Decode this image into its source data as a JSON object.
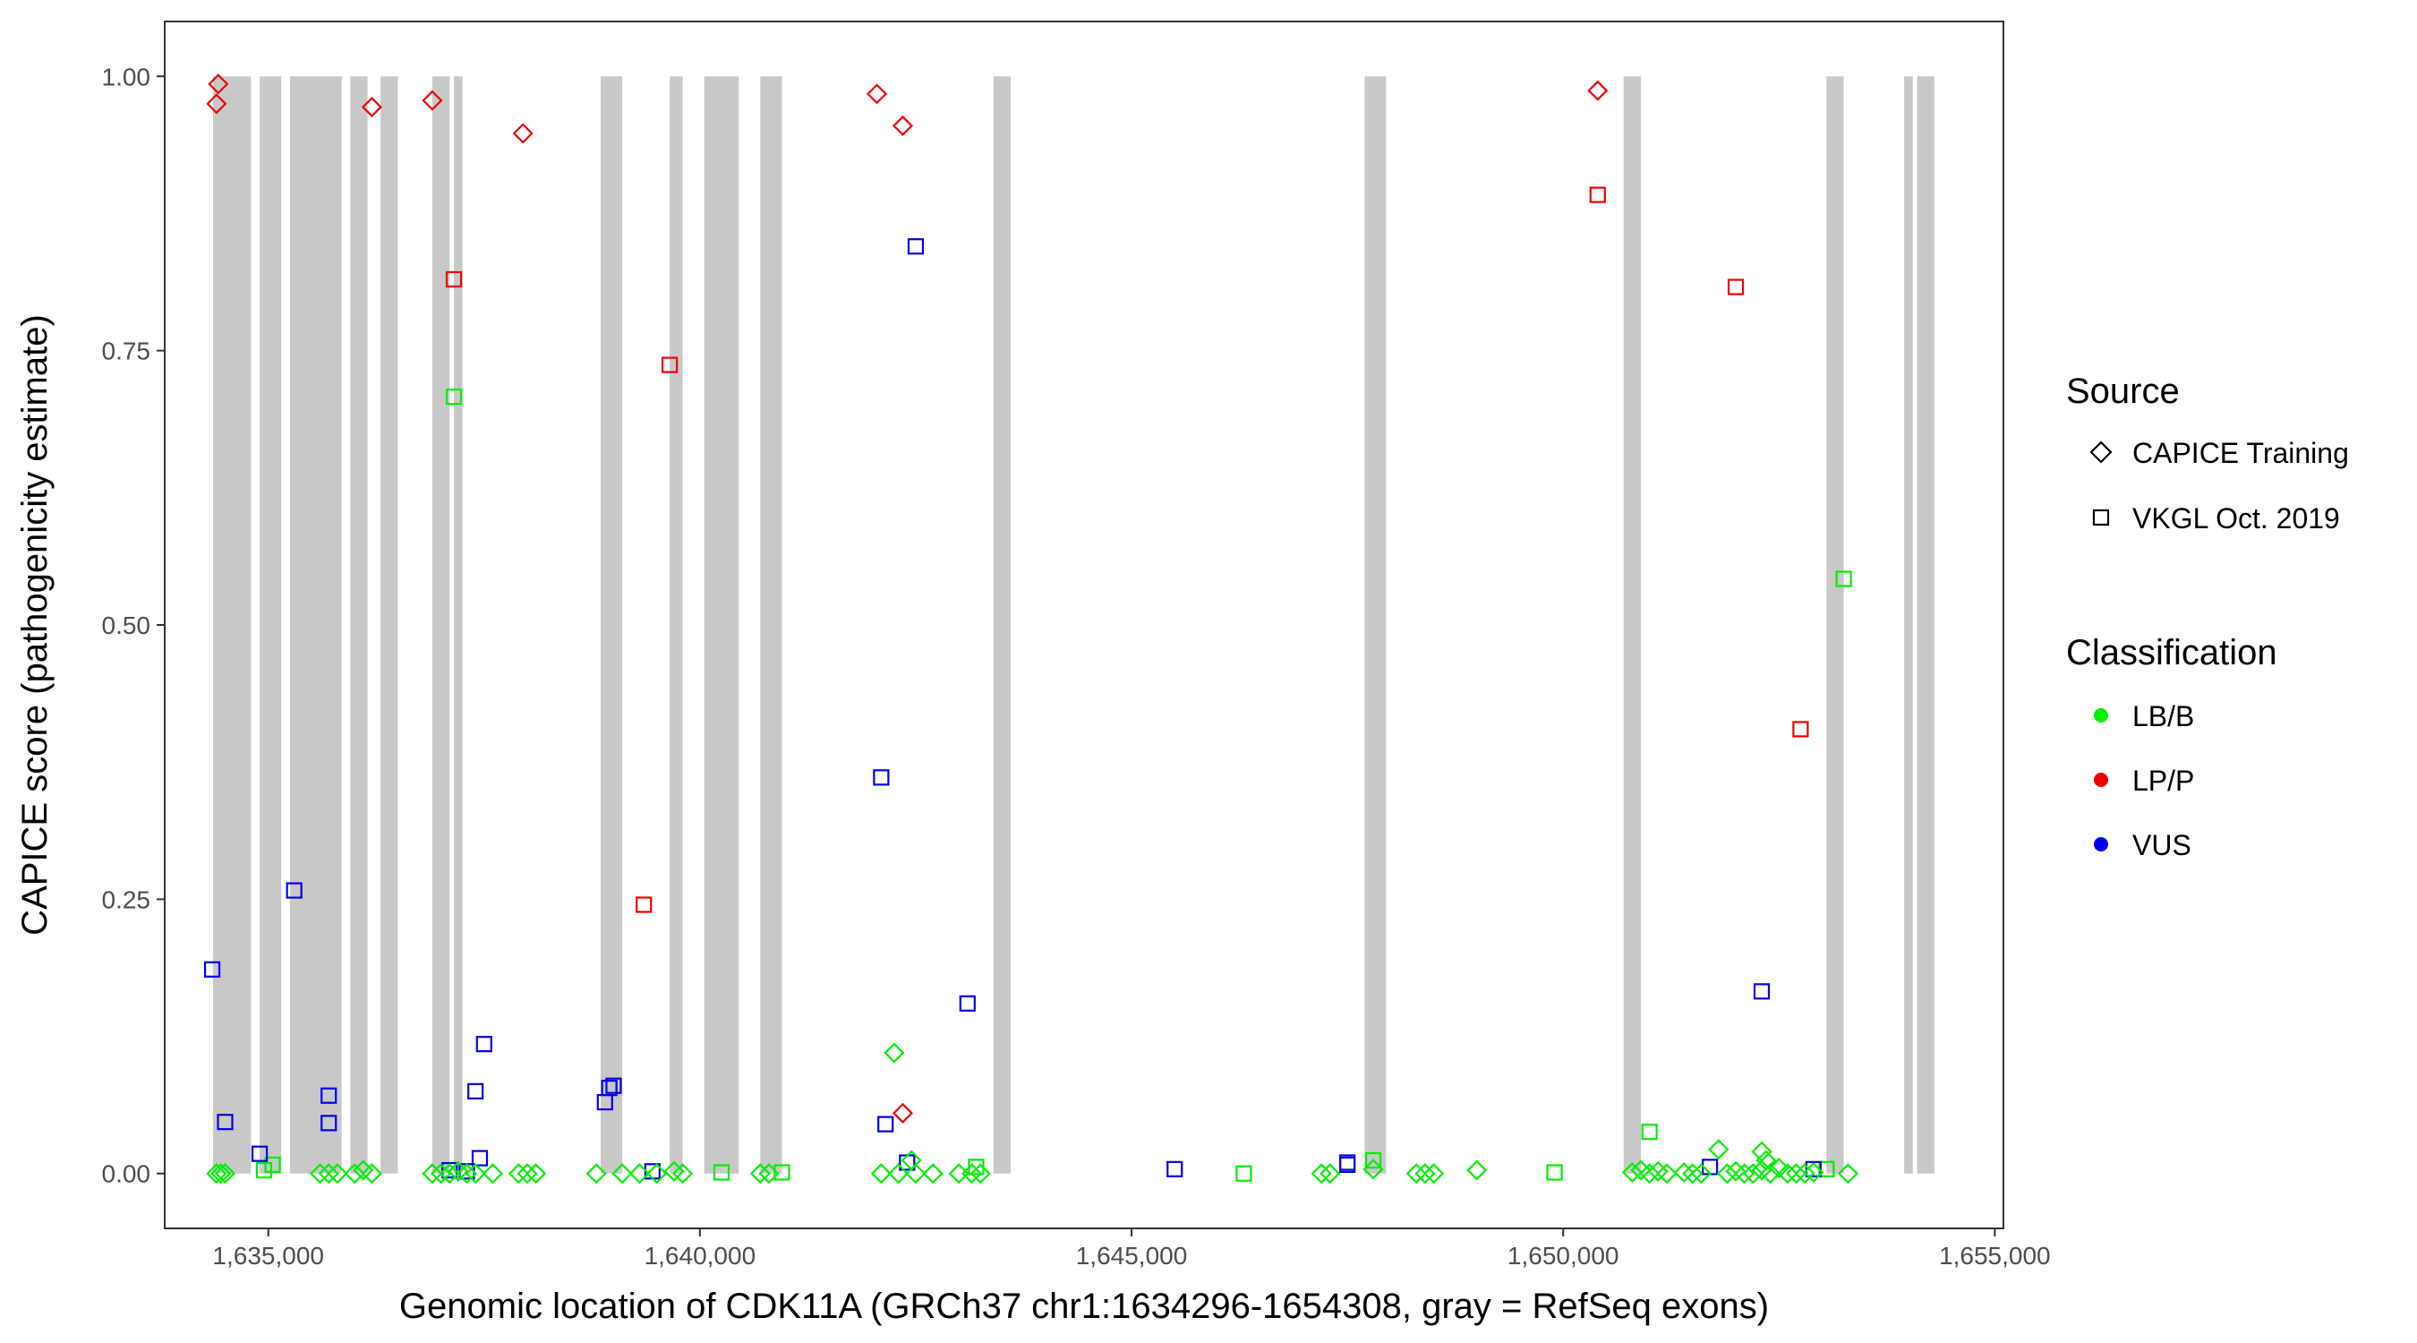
{
  "chart_data": {
    "type": "scatter",
    "xlabel": "Genomic location of CDK11A (GRCh37 chr1:1634296-1654308, gray = RefSeq exons)",
    "ylabel": "CAPICE score (pathogenicity estimate)",
    "xlim": [
      1633800,
      1655100
    ],
    "ylim": [
      -0.05,
      1.05
    ],
    "x_ticks": [
      1635000,
      1640000,
      1645000,
      1650000,
      1655000
    ],
    "x_tick_labels": [
      "1,635,000",
      "1,640,000",
      "1,645,000",
      "1,650,000",
      "1,655,000"
    ],
    "y_ticks": [
      0,
      0.25,
      0.5,
      0.75,
      1
    ],
    "y_tick_labels": [
      "0.00",
      "0.25",
      "0.50",
      "0.75",
      "1.00"
    ],
    "exon_color": "#c8c8c8",
    "exons": [
      [
        1634360,
        1634800
      ],
      [
        1634900,
        1635150
      ],
      [
        1635250,
        1635850
      ],
      [
        1635950,
        1636150
      ],
      [
        1636300,
        1636500
      ],
      [
        1636900,
        1637100
      ],
      [
        1637150,
        1637250
      ],
      [
        1638850,
        1639100
      ],
      [
        1639650,
        1639800
      ],
      [
        1640050,
        1640450
      ],
      [
        1640700,
        1640950
      ],
      [
        1643400,
        1643600
      ],
      [
        1647700,
        1647950
      ],
      [
        1650700,
        1650900
      ],
      [
        1653050,
        1653250
      ],
      [
        1653950,
        1654050
      ],
      [
        1654100,
        1654300
      ]
    ],
    "legend": {
      "source": {
        "title": "Source",
        "items": [
          {
            "label": "CAPICE Training",
            "shape": "diamond"
          },
          {
            "label": "VKGL Oct. 2019",
            "shape": "square"
          }
        ]
      },
      "classification": {
        "title": "Classification",
        "items": [
          {
            "label": "LB/B",
            "color": "#00ee00"
          },
          {
            "label": "LP/P",
            "color": "#ee0000"
          },
          {
            "label": "VUS",
            "color": "#0000ee"
          }
        ]
      }
    },
    "series": [
      {
        "source": "CAPICE Training",
        "class": "LP/P",
        "points": [
          [
            1634420,
            0.993
          ],
          [
            1634400,
            0.975
          ],
          [
            1636200,
            0.972
          ],
          [
            1636900,
            0.978
          ],
          [
            1637950,
            0.948
          ],
          [
            1642050,
            0.984
          ],
          [
            1642350,
            0.955
          ],
          [
            1650400,
            0.987
          ],
          [
            1642350,
            0.055
          ]
        ]
      },
      {
        "source": "VKGL Oct. 2019",
        "class": "LP/P",
        "points": [
          [
            1637150,
            0.815
          ],
          [
            1639650,
            0.737
          ],
          [
            1639350,
            0.245
          ],
          [
            1650400,
            0.892
          ],
          [
            1652000,
            0.808
          ],
          [
            1652750,
            0.405
          ]
        ]
      },
      {
        "source": "VKGL Oct. 2019",
        "class": "LB/B",
        "points": [
          [
            1637150,
            0.708
          ],
          [
            1653250,
            0.542
          ],
          [
            1651000,
            0.038
          ],
          [
            1647800,
            0.012
          ],
          [
            1634950,
            0.003
          ],
          [
            1635050,
            0.008
          ],
          [
            1643200,
            0.006
          ],
          [
            1640250,
            0.001
          ],
          [
            1640950,
            0.001
          ],
          [
            1646300,
            0.0
          ],
          [
            1649900,
            0.001
          ],
          [
            1653050,
            0.004
          ]
        ]
      },
      {
        "source": "VKGL Oct. 2019",
        "class": "VUS",
        "points": [
          [
            1642500,
            0.845
          ],
          [
            1642100,
            0.361
          ],
          [
            1635300,
            0.258
          ],
          [
            1634350,
            0.186
          ],
          [
            1643100,
            0.155
          ],
          [
            1652300,
            0.166
          ],
          [
            1637500,
            0.118
          ],
          [
            1638950,
            0.078
          ],
          [
            1638900,
            0.065
          ],
          [
            1639000,
            0.08
          ],
          [
            1637400,
            0.075
          ],
          [
            1635700,
            0.071
          ],
          [
            1635700,
            0.046
          ],
          [
            1634500,
            0.047
          ],
          [
            1642150,
            0.045
          ],
          [
            1634900,
            0.018
          ],
          [
            1637450,
            0.014
          ],
          [
            1642400,
            0.01
          ],
          [
            1645500,
            0.004
          ],
          [
            1647500,
            0.008
          ],
          [
            1647500,
            0.01
          ],
          [
            1651700,
            0.006
          ],
          [
            1652900,
            0.004
          ],
          [
            1639450,
            0.002
          ],
          [
            1637100,
            0.003
          ],
          [
            1637300,
            0.002
          ]
        ]
      },
      {
        "source": "CAPICE Training",
        "class": "LB/B",
        "points": [
          [
            1642250,
            0.11
          ],
          [
            1651800,
            0.022
          ],
          [
            1652300,
            0.02
          ],
          [
            1652350,
            0.012
          ],
          [
            1642450,
            0.012
          ],
          [
            1634400,
            0.0
          ],
          [
            1634450,
            0.0
          ],
          [
            1634500,
            0.0
          ],
          [
            1635600,
            0.0
          ],
          [
            1635700,
            0.0
          ],
          [
            1635800,
            0.0
          ],
          [
            1636000,
            0.0
          ],
          [
            1636100,
            0.003
          ],
          [
            1636200,
            0.0
          ],
          [
            1636900,
            0.0
          ],
          [
            1637000,
            0.0
          ],
          [
            1637100,
            0.0
          ],
          [
            1637200,
            0.002
          ],
          [
            1637300,
            0.0
          ],
          [
            1637400,
            0.0
          ],
          [
            1637600,
            0.0
          ],
          [
            1637900,
            0.0
          ],
          [
            1638000,
            0.0
          ],
          [
            1638100,
            0.0
          ],
          [
            1638800,
            0.0
          ],
          [
            1639100,
            0.0
          ],
          [
            1639300,
            0.0
          ],
          [
            1639500,
            0.0
          ],
          [
            1639700,
            0.002
          ],
          [
            1639800,
            0.0
          ],
          [
            1640700,
            0.0
          ],
          [
            1640800,
            0.0
          ],
          [
            1642100,
            0.0
          ],
          [
            1642300,
            0.0
          ],
          [
            1642500,
            0.0
          ],
          [
            1642700,
            0.0
          ],
          [
            1643000,
            0.0
          ],
          [
            1643150,
            0.0
          ],
          [
            1643250,
            0.0
          ],
          [
            1647200,
            0.0
          ],
          [
            1647300,
            0.0
          ],
          [
            1647800,
            0.004
          ],
          [
            1648300,
            0.0
          ],
          [
            1648400,
            0.0
          ],
          [
            1648500,
            0.0
          ],
          [
            1649000,
            0.003
          ],
          [
            1650800,
            0.001
          ],
          [
            1650900,
            0.003
          ],
          [
            1651000,
            0.0
          ],
          [
            1651100,
            0.002
          ],
          [
            1651200,
            0.0
          ],
          [
            1651400,
            0.001
          ],
          [
            1651500,
            0.0
          ],
          [
            1651600,
            0.0
          ],
          [
            1651900,
            0.0
          ],
          [
            1652000,
            0.002
          ],
          [
            1652100,
            0.0
          ],
          [
            1652200,
            0.0
          ],
          [
            1652300,
            0.003
          ],
          [
            1652400,
            0.0
          ],
          [
            1652500,
            0.005
          ],
          [
            1652600,
            0.0
          ],
          [
            1652700,
            0.0
          ],
          [
            1652800,
            0.0
          ],
          [
            1652900,
            0.001
          ],
          [
            1653300,
            0.0
          ]
        ]
      }
    ]
  }
}
